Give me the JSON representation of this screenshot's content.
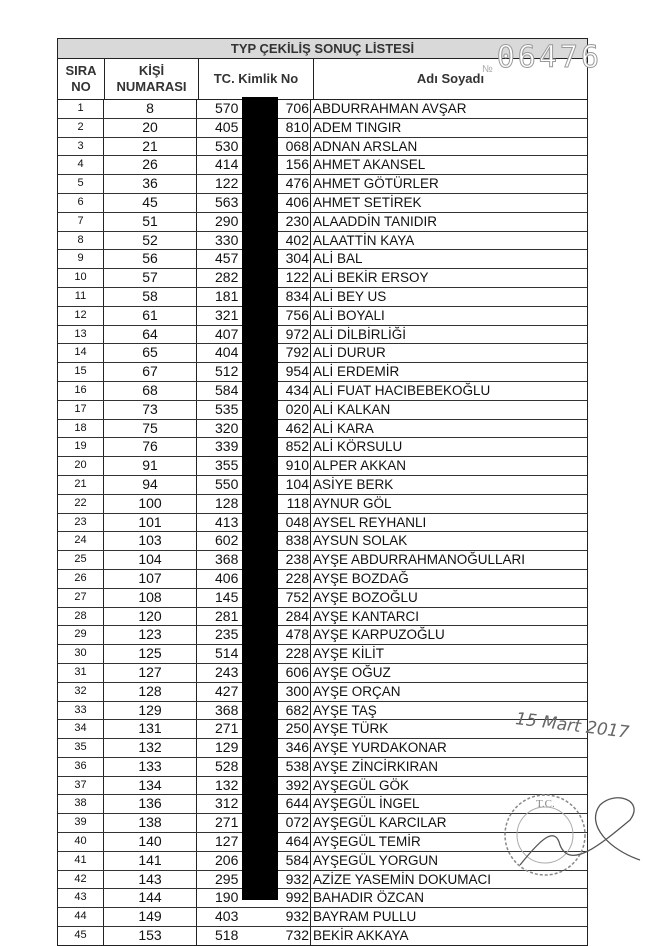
{
  "title": "TYP ÇEKİLİŞ SONUÇ LİSTESİ",
  "headers": {
    "sira": "SIRA NO",
    "kisi": "KİŞİ NUMARASI",
    "tc": "TC. Kimlik No",
    "name": "Adı Soyadı"
  },
  "stamp_number": {
    "prefix": "№",
    "value": "06476"
  },
  "date_stamp": "15 Mart 2017",
  "seal_text": "T.C.",
  "rows": [
    {
      "sira": "1",
      "kisi": "8",
      "tc_pre": "570",
      "tc_suf": "706",
      "name": "ABDURRAHMAN AVŞAR"
    },
    {
      "sira": "2",
      "kisi": "20",
      "tc_pre": "405",
      "tc_suf": "810",
      "name": "ADEM TINGIR"
    },
    {
      "sira": "3",
      "kisi": "21",
      "tc_pre": "530",
      "tc_suf": "068",
      "name": "ADNAN ARSLAN"
    },
    {
      "sira": "4",
      "kisi": "26",
      "tc_pre": "414",
      "tc_suf": "156",
      "name": "AHMET AKANSEL"
    },
    {
      "sira": "5",
      "kisi": "36",
      "tc_pre": "122",
      "tc_suf": "476",
      "name": "AHMET GÖTÜRLER"
    },
    {
      "sira": "6",
      "kisi": "45",
      "tc_pre": "563",
      "tc_suf": "406",
      "name": "AHMET SETİREK"
    },
    {
      "sira": "7",
      "kisi": "51",
      "tc_pre": "290",
      "tc_suf": "230",
      "name": "ALAADDİN TANIDIR"
    },
    {
      "sira": "8",
      "kisi": "52",
      "tc_pre": "330",
      "tc_suf": "402",
      "name": "ALAATTİN KAYA"
    },
    {
      "sira": "9",
      "kisi": "56",
      "tc_pre": "457",
      "tc_suf": "304",
      "name": "ALİ BAL"
    },
    {
      "sira": "10",
      "kisi": "57",
      "tc_pre": "282",
      "tc_suf": "122",
      "name": "ALİ BEKİR ERSOY"
    },
    {
      "sira": "11",
      "kisi": "58",
      "tc_pre": "181",
      "tc_suf": "834",
      "name": "ALİ BEY US"
    },
    {
      "sira": "12",
      "kisi": "61",
      "tc_pre": "321",
      "tc_suf": "756",
      "name": "ALİ BOYALI"
    },
    {
      "sira": "13",
      "kisi": "64",
      "tc_pre": "407",
      "tc_suf": "972",
      "name": "ALİ DİLBİRLİĞİ"
    },
    {
      "sira": "14",
      "kisi": "65",
      "tc_pre": "404",
      "tc_suf": "792",
      "name": "ALİ DURUR"
    },
    {
      "sira": "15",
      "kisi": "67",
      "tc_pre": "512",
      "tc_suf": "954",
      "name": "ALİ ERDEMİR"
    },
    {
      "sira": "16",
      "kisi": "68",
      "tc_pre": "584",
      "tc_suf": "434",
      "name": "ALİ FUAT HACIBEBEKOĞLU"
    },
    {
      "sira": "17",
      "kisi": "73",
      "tc_pre": "535",
      "tc_suf": "020",
      "name": "ALİ KALKAN"
    },
    {
      "sira": "18",
      "kisi": "75",
      "tc_pre": "320",
      "tc_suf": "462",
      "name": "ALİ KARA"
    },
    {
      "sira": "19",
      "kisi": "76",
      "tc_pre": "339",
      "tc_suf": "852",
      "name": "ALİ KÖRSULU"
    },
    {
      "sira": "20",
      "kisi": "91",
      "tc_pre": "355",
      "tc_suf": "910",
      "name": "ALPER AKKAN"
    },
    {
      "sira": "21",
      "kisi": "94",
      "tc_pre": "550",
      "tc_suf": "104",
      "name": "ASİYE BERK"
    },
    {
      "sira": "22",
      "kisi": "100",
      "tc_pre": "128",
      "tc_suf": "118",
      "name": "AYNUR GÖL"
    },
    {
      "sira": "23",
      "kisi": "101",
      "tc_pre": "413",
      "tc_suf": "048",
      "name": "AYSEL REYHANLI"
    },
    {
      "sira": "24",
      "kisi": "103",
      "tc_pre": "602",
      "tc_suf": "838",
      "name": "AYSUN SOLAK"
    },
    {
      "sira": "25",
      "kisi": "104",
      "tc_pre": "368",
      "tc_suf": "238",
      "name": "AYŞE ABDURRAHMANOĞULLARI"
    },
    {
      "sira": "26",
      "kisi": "107",
      "tc_pre": "406",
      "tc_suf": "228",
      "name": "AYŞE BOZDAĞ"
    },
    {
      "sira": "27",
      "kisi": "108",
      "tc_pre": "145",
      "tc_suf": "752",
      "name": "AYŞE BOZOĞLU"
    },
    {
      "sira": "28",
      "kisi": "120",
      "tc_pre": "281",
      "tc_suf": "284",
      "name": "AYŞE KANTARCI"
    },
    {
      "sira": "29",
      "kisi": "123",
      "tc_pre": "235",
      "tc_suf": "478",
      "name": "AYŞE KARPUZOĞLU"
    },
    {
      "sira": "30",
      "kisi": "125",
      "tc_pre": "514",
      "tc_suf": "228",
      "name": "AYŞE KİLİT"
    },
    {
      "sira": "31",
      "kisi": "127",
      "tc_pre": "243",
      "tc_suf": "606",
      "name": "AYŞE OĞUZ"
    },
    {
      "sira": "32",
      "kisi": "128",
      "tc_pre": "427",
      "tc_suf": "300",
      "name": "AYŞE ORÇAN"
    },
    {
      "sira": "33",
      "kisi": "129",
      "tc_pre": "368",
      "tc_suf": "682",
      "name": "AYŞE TAŞ"
    },
    {
      "sira": "34",
      "kisi": "131",
      "tc_pre": "271",
      "tc_suf": "250",
      "name": "AYŞE TÜRK"
    },
    {
      "sira": "35",
      "kisi": "132",
      "tc_pre": "129",
      "tc_suf": "346",
      "name": "AYŞE YURDAKONAR"
    },
    {
      "sira": "36",
      "kisi": "133",
      "tc_pre": "528",
      "tc_suf": "538",
      "name": "AYŞE ZİNCİRKIRAN"
    },
    {
      "sira": "37",
      "kisi": "134",
      "tc_pre": "132",
      "tc_suf": "392",
      "name": "AYŞEGÜL GÖK"
    },
    {
      "sira": "38",
      "kisi": "136",
      "tc_pre": "312",
      "tc_suf": "644",
      "name": "AYŞEGÜL İNGEL"
    },
    {
      "sira": "39",
      "kisi": "138",
      "tc_pre": "271",
      "tc_suf": "072",
      "name": "AYŞEGÜL KARCILAR"
    },
    {
      "sira": "40",
      "kisi": "140",
      "tc_pre": "127",
      "tc_suf": "464",
      "name": "AYŞEGÜL TEMİR"
    },
    {
      "sira": "41",
      "kisi": "141",
      "tc_pre": "206",
      "tc_suf": "584",
      "name": "AYŞEGÜL YORGUN"
    },
    {
      "sira": "42",
      "kisi": "143",
      "tc_pre": "295",
      "tc_suf": "932",
      "name": "AZİZE YASEMİN DOKUMACI"
    },
    {
      "sira": "43",
      "kisi": "144",
      "tc_pre": "190",
      "tc_suf": "992",
      "name": "BAHADIR ÖZCAN"
    },
    {
      "sira": "44",
      "kisi": "149",
      "tc_pre": "403",
      "tc_suf": "932",
      "name": "BAYRAM PULLU"
    },
    {
      "sira": "45",
      "kisi": "153",
      "tc_pre": "518",
      "tc_suf": "732",
      "name": "BEKİR AKKAYA"
    }
  ]
}
